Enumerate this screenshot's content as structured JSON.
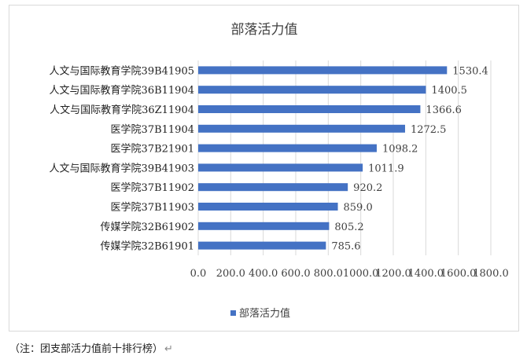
{
  "chart_data": {
    "type": "bar",
    "orientation": "horizontal",
    "title": "部落活力值",
    "categories": [
      "人文与国际教育学院39B41905",
      "人文与国际教育学院36B11904",
      "人文与国际教育学院36Z11904",
      "医学院37B11904",
      "医学院37B21901",
      "人文与国际教育学院39B41903",
      "医学院37B11902",
      "医学院37B11903",
      "传媒学院32B61902",
      "传媒学院32B61901"
    ],
    "series": [
      {
        "name": "部落活力值",
        "values": [
          1530.4,
          1400.5,
          1366.6,
          1272.5,
          1098.2,
          1011.9,
          920.2,
          859.0,
          805.2,
          785.6
        ],
        "value_labels": [
          "1530.4",
          "1400.5",
          "1366.6",
          "1272.5",
          "1098.2",
          "1011.9",
          "920.2",
          "859.0",
          "805.2",
          "785.6"
        ]
      }
    ],
    "xlim": [
      0,
      1800
    ],
    "x_tick_labels": [
      "0.0",
      "200.0",
      "400.0",
      "600.0",
      "800.0",
      "1000.0",
      "1200.0",
      "1400.0",
      "1600.0",
      "1800.0"
    ],
    "grid": true,
    "legend_position": "bottom",
    "bar_color": "#4472c4"
  },
  "caption": {
    "text": "（注：团支部活力值前十排行榜）",
    "return_mark": "↵"
  }
}
